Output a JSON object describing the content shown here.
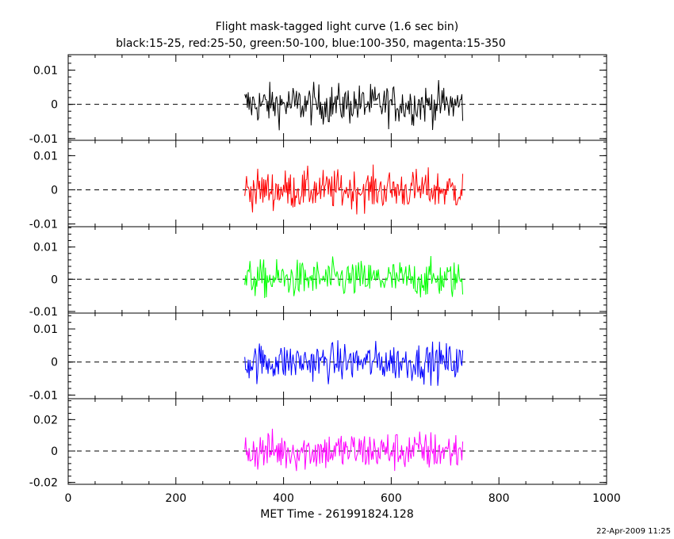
{
  "title": "Flight mask-tagged light curve (1.6 sec bin)",
  "subtitle": "black:15-25, red:25-50, green:50-100, blue:100-350, magenta:15-350",
  "timestamp": "22-Apr-2009 11:25",
  "chart_data": {
    "type": "line",
    "xlabel": "MET Time - 261991824.128",
    "xlim": [
      0,
      1000
    ],
    "x_ticks": [
      "0",
      "200",
      "400",
      "600",
      "800",
      "1000"
    ],
    "data_range": [
      328,
      733
    ],
    "bin_seconds": 1.6,
    "panels": [
      {
        "series": "15-25",
        "color": "#000000",
        "ylim": [
          -0.0105,
          0.0145
        ],
        "y_ticks": [
          {
            "v": 0.01,
            "label": "0.01"
          },
          {
            "v": 0,
            "label": "0"
          },
          {
            "v": -0.01,
            "label": "-0.01"
          }
        ],
        "noise_amplitude": 0.0052
      },
      {
        "series": "25-50",
        "color": "#ff0000",
        "ylim": [
          -0.0108,
          0.0145
        ],
        "y_ticks": [
          {
            "v": 0.01,
            "label": "0.01"
          },
          {
            "v": 0,
            "label": "0"
          },
          {
            "v": -0.01,
            "label": "-0.01"
          }
        ],
        "noise_amplitude": 0.0052
      },
      {
        "series": "50-100",
        "color": "#00ff00",
        "ylim": [
          -0.0105,
          0.0163
        ],
        "y_ticks": [
          {
            "v": 0.01,
            "label": "0.01"
          },
          {
            "v": 0,
            "label": "0"
          },
          {
            "v": -0.01,
            "label": "-0.01"
          }
        ],
        "noise_amplitude": 0.0052
      },
      {
        "series": "100-350",
        "color": "#0000ff",
        "ylim": [
          -0.0111,
          0.0148
        ],
        "y_ticks": [
          {
            "v": 0.01,
            "label": "0.01"
          },
          {
            "v": 0,
            "label": "0"
          },
          {
            "v": -0.01,
            "label": "-0.01"
          }
        ],
        "noise_amplitude": 0.0052
      },
      {
        "series": "15-350",
        "color": "#ff00ff",
        "ylim": [
          -0.0212,
          0.0333
        ],
        "y_ticks": [
          {
            "v": 0.02,
            "label": "0.02"
          },
          {
            "v": 0,
            "label": "0"
          },
          {
            "v": -0.02,
            "label": "-0.02"
          }
        ],
        "noise_amplitude": 0.0115
      }
    ]
  }
}
